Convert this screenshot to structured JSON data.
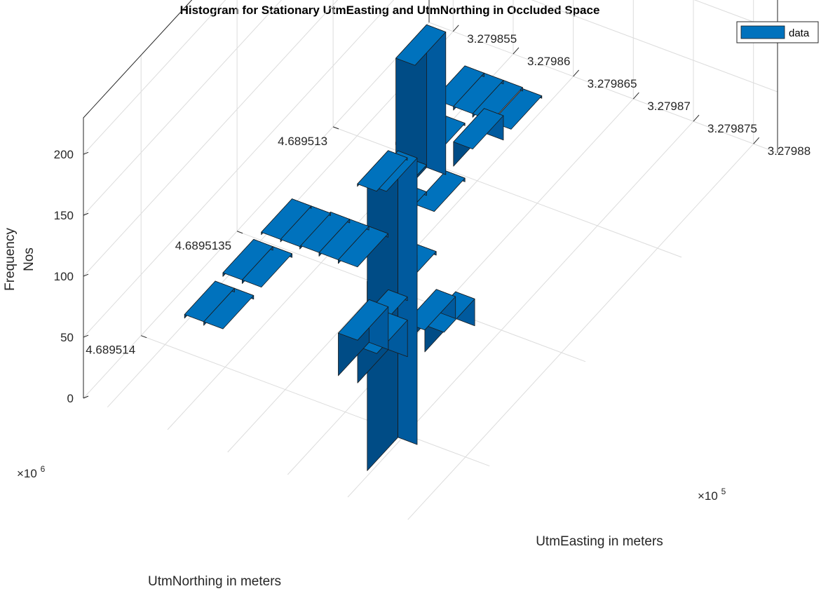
{
  "chart_data": {
    "type": "bar3d",
    "title": "Histogram for Stationary UtmEasting and UtmNorthing in Occluded Space",
    "xlabel": "UtmEasting in meters",
    "ylabel": "UtmNorthing in meters",
    "zlabel": [
      "Frequency",
      "Nos"
    ],
    "x_multiplier": "×10",
    "x_multiplier_exp": "5",
    "y_multiplier": "×10",
    "y_multiplier_exp": "6",
    "x_ticks": [
      "3.279855",
      "3.27986",
      "3.279865",
      "3.27987",
      "3.279875",
      "3.27988"
    ],
    "y_ticks": [
      "4.689514",
      "4.6895135",
      "4.689513"
    ],
    "z_ticks": [
      "0",
      "50",
      "100",
      "150",
      "200"
    ],
    "x_tick_values": [
      3.279855,
      3.27986,
      3.279865,
      3.27987,
      3.279875,
      3.27988
    ],
    "y_tick_values": [
      4.689514,
      4.6895135,
      4.689513
    ],
    "z_tick_values": [
      0,
      50,
      100,
      150,
      200
    ],
    "xlim": [
      3.279853,
      3.279882
    ],
    "ylim": [
      4.6895125,
      4.6895143
    ],
    "zlim": [
      0,
      230
    ],
    "bin_width_x": 1.6e-06,
    "bin_width_y": 1.6e-07,
    "bars": [
      {
        "x": 3.2798555,
        "y": 4.6895138,
        "z": 3
      },
      {
        "x": 3.2798555,
        "y": 4.6895136,
        "z": 3
      },
      {
        "x": 3.2798555,
        "y": 4.6895134,
        "z": 2
      },
      {
        "x": 3.2798571,
        "y": 4.6895138,
        "z": 3
      },
      {
        "x": 3.2798571,
        "y": 4.6895136,
        "z": 3
      },
      {
        "x": 3.2798571,
        "y": 4.6895134,
        "z": 2
      },
      {
        "x": 3.2798587,
        "y": 4.6895134,
        "z": 3
      },
      {
        "x": 3.2798587,
        "y": 4.6895131,
        "z": 2
      },
      {
        "x": 3.2798587,
        "y": 4.6895129,
        "z": 2
      },
      {
        "x": 3.2798587,
        "y": 4.6895127,
        "z": 3
      },
      {
        "x": 3.2798603,
        "y": 4.6895134,
        "z": 3
      },
      {
        "x": 3.2798603,
        "y": 4.6895131,
        "z": 2
      },
      {
        "x": 3.2798603,
        "y": 4.6895129,
        "z": 2
      },
      {
        "x": 3.2798603,
        "y": 4.6895127,
        "z": 3
      },
      {
        "x": 3.2798619,
        "y": 4.6895134,
        "z": 3
      },
      {
        "x": 3.2798619,
        "y": 4.6895132,
        "z": 3
      },
      {
        "x": 3.2798619,
        "y": 4.6895131,
        "z": 117
      },
      {
        "x": 3.2798619,
        "y": 4.6895127,
        "z": 3
      },
      {
        "x": 3.2798635,
        "y": 4.6895131,
        "z": 3
      },
      {
        "x": 3.2798635,
        "y": 4.6895129,
        "z": 20
      },
      {
        "x": 3.2798635,
        "y": 4.6895127,
        "z": 2
      },
      {
        "x": 3.2798659,
        "y": 4.6895134,
        "z": 3
      },
      {
        "x": 3.2798667,
        "y": 4.6895136,
        "z": 3
      },
      {
        "x": 3.2798675,
        "y": 4.6895136,
        "z": 40
      },
      {
        "x": 3.2798683,
        "y": 4.6895138,
        "z": 35
      },
      {
        "x": 3.2798699,
        "y": 4.6895138,
        "z": 30
      },
      {
        "x": 3.2798707,
        "y": 4.6895136,
        "z": 18
      },
      {
        "x": 3.2798723,
        "y": 4.6895136,
        "z": 22
      },
      {
        "x": 3.2798755,
        "y": 4.6895141,
        "z": 235
      }
    ],
    "legend": [
      "data"
    ],
    "legend_position": "top-right",
    "grid": true,
    "bar_color": "#0072BD",
    "colors": {
      "top": "#0072BD",
      "front": "#005A9E",
      "side": "#004C86"
    }
  }
}
